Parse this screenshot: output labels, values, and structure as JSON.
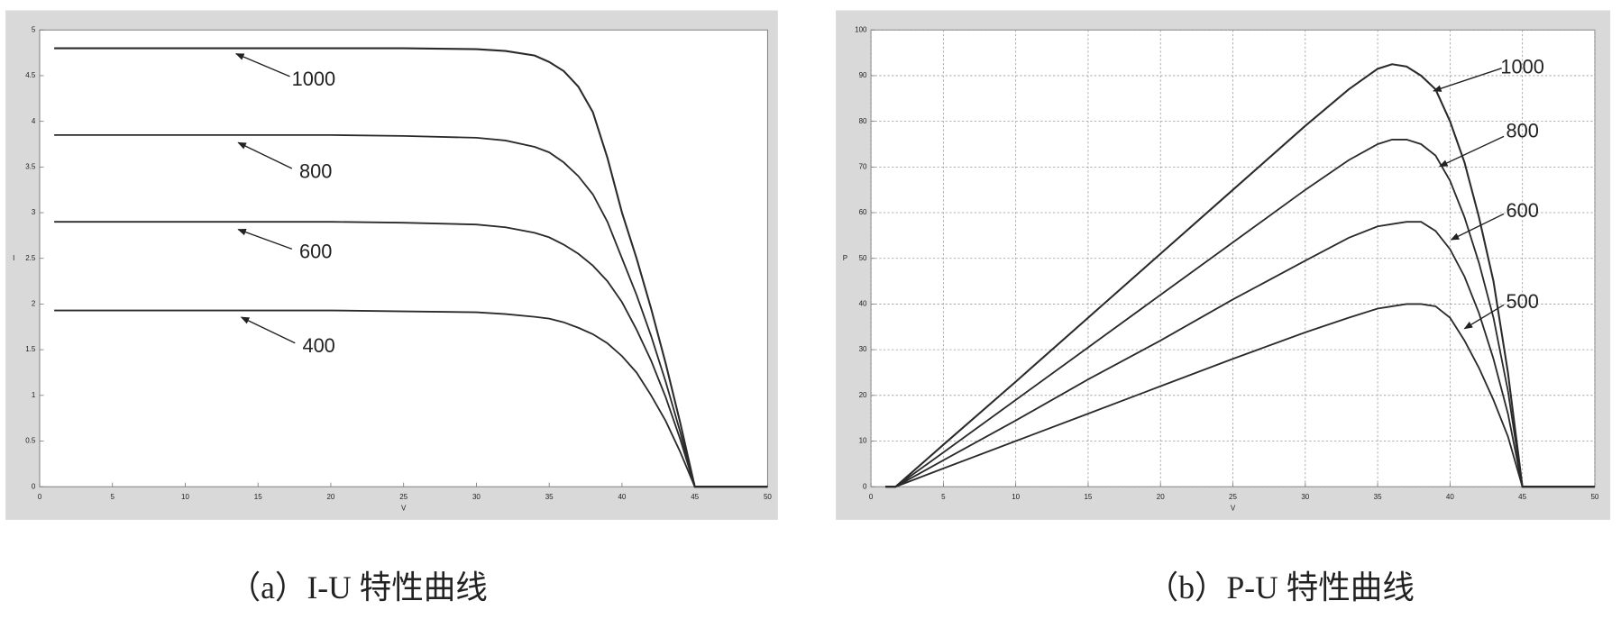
{
  "chart_data": [
    {
      "type": "line",
      "caption": "（a）I-U 特性曲线",
      "x_label": "V",
      "y_label": "I",
      "grid": false,
      "xlim": [
        0,
        50
      ],
      "ylim": [
        0,
        5
      ],
      "xticks": [
        0,
        5,
        10,
        15,
        20,
        25,
        30,
        35,
        40,
        45,
        50
      ],
      "yticks": [
        0,
        0.5,
        1,
        1.5,
        2,
        2.5,
        3,
        3.5,
        4,
        4.5,
        5
      ],
      "x": [
        1,
        5,
        10,
        15,
        20,
        25,
        30,
        32,
        34,
        35,
        36,
        37,
        38,
        39,
        40,
        41,
        42,
        43,
        44,
        45,
        46,
        50
      ],
      "series": [
        {
          "name": "1000",
          "color": "#2a2a2a",
          "values": [
            4.8,
            4.8,
            4.8,
            4.8,
            4.8,
            4.8,
            4.79,
            4.77,
            4.72,
            4.65,
            4.55,
            4.38,
            4.1,
            3.6,
            3.0,
            2.5,
            1.95,
            1.35,
            0.7,
            0,
            0,
            0
          ]
        },
        {
          "name": "800",
          "color": "#2a2a2a",
          "values": [
            3.85,
            3.85,
            3.85,
            3.85,
            3.85,
            3.84,
            3.82,
            3.79,
            3.72,
            3.66,
            3.55,
            3.4,
            3.2,
            2.9,
            2.5,
            2.1,
            1.65,
            1.15,
            0.6,
            0,
            0,
            0
          ]
        },
        {
          "name": "600",
          "color": "#2a2a2a",
          "values": [
            2.9,
            2.9,
            2.9,
            2.9,
            2.9,
            2.89,
            2.87,
            2.84,
            2.78,
            2.73,
            2.65,
            2.55,
            2.42,
            2.25,
            2.02,
            1.72,
            1.38,
            0.98,
            0.52,
            0,
            0,
            0
          ]
        },
        {
          "name": "400",
          "color": "#2a2a2a",
          "values": [
            1.93,
            1.93,
            1.93,
            1.93,
            1.93,
            1.92,
            1.91,
            1.89,
            1.86,
            1.84,
            1.8,
            1.74,
            1.67,
            1.57,
            1.43,
            1.25,
            1.0,
            0.72,
            0.38,
            0,
            0,
            0
          ]
        }
      ]
    },
    {
      "type": "line",
      "caption": "（b）P-U 特性曲线",
      "x_label": "V",
      "y_label": "P",
      "grid": true,
      "xlim": [
        0,
        50
      ],
      "ylim": [
        0,
        100
      ],
      "xticks": [
        0,
        5,
        10,
        15,
        20,
        25,
        30,
        35,
        40,
        45,
        50
      ],
      "yticks": [
        0,
        10,
        20,
        30,
        40,
        50,
        60,
        70,
        80,
        90,
        100
      ],
      "x": [
        1,
        1.7,
        5,
        10,
        15,
        20,
        25,
        30,
        33,
        35,
        36,
        37,
        38,
        39,
        40,
        41,
        42,
        43,
        44,
        45,
        50
      ],
      "series": [
        {
          "name": "1000",
          "color": "#2a2a2a",
          "values": [
            0,
            0,
            9.2,
            23,
            37,
            51,
            65,
            79,
            87,
            91.5,
            92.5,
            92,
            90,
            87,
            80,
            71,
            59,
            45,
            25,
            0,
            0
          ]
        },
        {
          "name": "800",
          "color": "#2a2a2a",
          "values": [
            0,
            0,
            7.5,
            19,
            30.5,
            42,
            53.5,
            65,
            71.5,
            75,
            76,
            76,
            75,
            72.5,
            67,
            59,
            49,
            37,
            21,
            0,
            0
          ]
        },
        {
          "name": "600",
          "color": "#2a2a2a",
          "values": [
            0,
            0,
            5.8,
            14.5,
            23.5,
            32,
            41,
            49.5,
            54.5,
            57,
            57.5,
            58,
            58,
            56,
            52,
            46,
            38,
            28,
            16,
            0,
            0
          ]
        },
        {
          "name": "500",
          "color": "#2a2a2a",
          "values": [
            0,
            0,
            4,
            10,
            16,
            22,
            28,
            33.8,
            37,
            39,
            39.5,
            40,
            40,
            39.5,
            37,
            32,
            26,
            19,
            11,
            0,
            0
          ]
        }
      ]
    }
  ]
}
